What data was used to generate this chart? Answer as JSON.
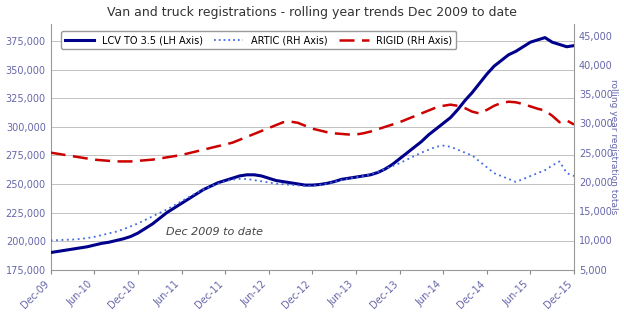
{
  "title": "Van and truck registrations - rolling year trends Dec 2009 to date",
  "annotation": "Dec 2009 to date",
  "ylabel_right": "rolling year registration totals",
  "ylim_left": [
    175000,
    390000
  ],
  "ylim_right": [
    5000,
    47000
  ],
  "yticks_left": [
    175000,
    200000,
    225000,
    250000,
    275000,
    300000,
    325000,
    350000,
    375000
  ],
  "yticks_right": [
    5000,
    10000,
    15000,
    20000,
    25000,
    30000,
    35000,
    40000,
    45000
  ],
  "xtick_labels": [
    "Dec-09",
    "Jun-10",
    "Dec-10",
    "Jun-11",
    "Dec-11",
    "Jun-12",
    "Dec-12",
    "Jun-13",
    "Dec-13",
    "Jun-14",
    "Dec-14",
    "Jun-15",
    "Dec-15"
  ],
  "lcv_color": "#00008B",
  "artic_color": "#4169E1",
  "rigid_color": "#CC0000",
  "background_color": "#FFFFFF",
  "grid_color": "#AAAAAA",
  "axis_color": "#6666AA",
  "lcv_data": [
    190000,
    191000,
    192000,
    193000,
    194000,
    195000,
    196500,
    198000,
    199000,
    200500,
    202000,
    204000,
    207000,
    211000,
    215000,
    220000,
    225000,
    229000,
    233000,
    237000,
    241000,
    245000,
    248000,
    251000,
    253000,
    255000,
    257000,
    258000,
    258000,
    257000,
    255000,
    253000,
    252000,
    251000,
    250000,
    249000,
    249000,
    249500,
    250500,
    252000,
    254000,
    255000,
    256000,
    257000,
    258000,
    260000,
    263000,
    267000,
    272000,
    277000,
    282000,
    287000,
    293000,
    298000,
    303000,
    308000,
    315000,
    323000,
    330000,
    338000,
    346000,
    353000,
    358000,
    363000,
    366000,
    370000,
    374000,
    376000,
    378000,
    374000,
    372000,
    370000,
    371000
  ],
  "artic_data": [
    10000,
    10050,
    10100,
    10150,
    10250,
    10400,
    10600,
    10900,
    11200,
    11500,
    11900,
    12400,
    12900,
    13500,
    14100,
    14700,
    15300,
    16000,
    16700,
    17400,
    18100,
    18700,
    19200,
    19700,
    20100,
    20400,
    20500,
    20500,
    20300,
    20100,
    19900,
    19700,
    19600,
    19500,
    19400,
    19300,
    19300,
    19500,
    19700,
    20000,
    20300,
    20600,
    20800,
    21000,
    21300,
    21700,
    22200,
    22700,
    23200,
    23800,
    24400,
    25000,
    25500,
    26000,
    26200,
    26000,
    25500,
    25000,
    24500,
    23500,
    22500,
    21500,
    21000,
    20500,
    20000,
    20500,
    21000,
    21500,
    22000,
    22800,
    23500,
    21500,
    21000
  ],
  "rigid_data": [
    25000,
    24800,
    24600,
    24400,
    24200,
    24000,
    23800,
    23700,
    23600,
    23500,
    23500,
    23500,
    23600,
    23700,
    23800,
    24000,
    24200,
    24400,
    24600,
    24900,
    25200,
    25500,
    25800,
    26100,
    26400,
    26700,
    27200,
    27700,
    28200,
    28700,
    29200,
    29700,
    30200,
    30300,
    30100,
    29600,
    29100,
    28800,
    28500,
    28300,
    28200,
    28100,
    28100,
    28300,
    28600,
    29000,
    29400,
    29800,
    30200,
    30700,
    31200,
    31700,
    32200,
    32700,
    33000,
    33200,
    33000,
    32600,
    32000,
    31700,
    32300,
    33000,
    33500,
    33700,
    33600,
    33300,
    32900,
    32500,
    32200,
    31300,
    30200,
    30500,
    29800
  ]
}
